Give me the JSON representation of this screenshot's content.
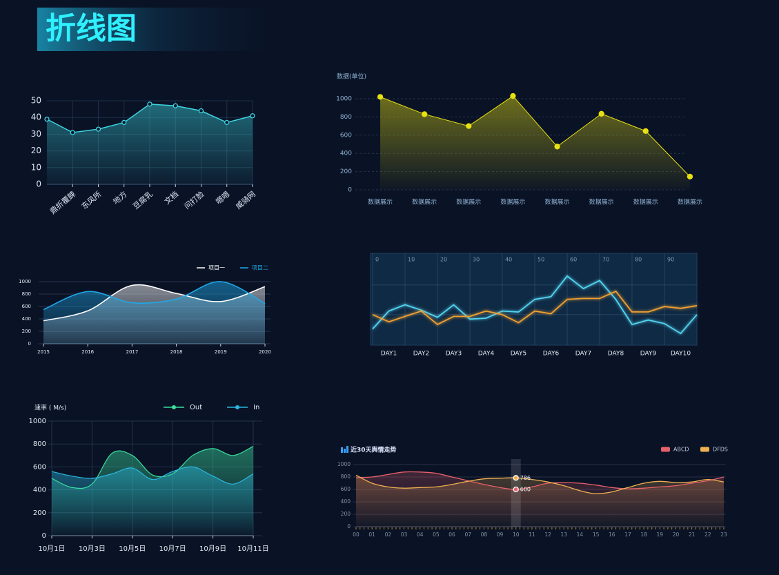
{
  "title": "折线图",
  "chart_data": [
    {
      "type": "area",
      "categories": [
        null,
        "鼎折覆餗",
        "东风所",
        "地方",
        "豆腐乳",
        "文档",
        "问打脸",
        "嗯嗯",
        "威骑网"
      ],
      "values": [
        39,
        31,
        33,
        37,
        48,
        47,
        44,
        37,
        41
      ],
      "color": "#3dd6e0",
      "ylim": [
        0,
        50
      ],
      "yticks": [
        0,
        10,
        20,
        30,
        40,
        50
      ],
      "grid": true,
      "markers": true,
      "smooth": false
    },
    {
      "type": "area",
      "y_label": "数据(单位)",
      "categories": [
        "数据展示",
        "数据展示",
        "数据展示",
        "数据展示",
        "数据展示",
        "数据展示",
        "数据展示",
        "数据展示"
      ],
      "values": [
        1020,
        830,
        700,
        1030,
        475,
        835,
        645,
        145
      ],
      "color": "#e8e010",
      "ylim": [
        0,
        1100
      ],
      "yticks": [
        0,
        200,
        400,
        600,
        800,
        1000
      ],
      "grid": true,
      "markers": true,
      "smooth": false
    },
    {
      "type": "area",
      "categories": [
        "2015",
        "2016",
        "2017",
        "2018",
        "2019",
        "2020"
      ],
      "series": [
        {
          "name": "项目一",
          "color": "#ffffff",
          "values": [
            370,
            530,
            940,
            810,
            680,
            920
          ]
        },
        {
          "name": "项目二",
          "color": "#1fa8e8",
          "values": [
            550,
            840,
            660,
            720,
            1000,
            650
          ]
        }
      ],
      "ylim": [
        0,
        1000
      ],
      "yticks": [
        0,
        200,
        400,
        600,
        800,
        1000
      ],
      "grid": true,
      "smooth": true
    },
    {
      "type": "line",
      "x": [
        0,
        5,
        10,
        15,
        20,
        25,
        30,
        35,
        40,
        45,
        50,
        55,
        60,
        65,
        70,
        75,
        80,
        85,
        90,
        95,
        100
      ],
      "xlim": [
        0,
        100
      ],
      "xticks": [
        0,
        10,
        20,
        30,
        40,
        50,
        60,
        70,
        80,
        90
      ],
      "categories": [
        "DAY1",
        "DAY2",
        "DAY3",
        "DAY4",
        "DAY5",
        "DAY6",
        "DAY7",
        "DAY8",
        "DAY9",
        "DAY10"
      ],
      "series": [
        {
          "color": "#52d4f2",
          "values": [
            18,
            38,
            45,
            39,
            31,
            45,
            29,
            30,
            38,
            37,
            51,
            54,
            77,
            63,
            72,
            51,
            23,
            28,
            24,
            13,
            34
          ]
        },
        {
          "color": "#f0a030",
          "values": [
            34,
            26,
            32,
            38,
            23,
            32,
            32,
            38,
            34,
            25,
            38,
            35,
            51,
            52,
            52,
            60,
            37,
            37,
            43,
            41,
            44
          ]
        }
      ],
      "ylim": [
        0,
        100
      ],
      "grid": true,
      "smooth": false
    },
    {
      "type": "area",
      "y_label": "速率 ( M/s)",
      "categories": [
        "10月1日",
        null,
        "10月3日",
        null,
        "10月5日",
        null,
        "10月7日",
        null,
        "10月9日",
        null,
        "10月11日"
      ],
      "series": [
        {
          "name": "Out",
          "color": "#3be0a0",
          "values": [
            500,
            420,
            450,
            720,
            700,
            530,
            540,
            700,
            760,
            700,
            780
          ]
        },
        {
          "name": "In",
          "color": "#2ab8e0",
          "values": [
            560,
            520,
            500,
            540,
            590,
            490,
            560,
            600,
            520,
            450,
            540
          ]
        }
      ],
      "ylim": [
        0,
        1000
      ],
      "yticks": [
        0,
        200,
        400,
        600,
        800,
        1000
      ],
      "grid": true,
      "smooth": true
    },
    {
      "type": "area",
      "title": "近30天舆情走势",
      "categories": [
        "00",
        "01",
        "02",
        "03",
        "04",
        "05",
        "06",
        "07",
        "08",
        "09",
        "10",
        "11",
        "12",
        "13",
        "14",
        "15",
        "16",
        "17",
        "18",
        "19",
        "20",
        "21",
        "22",
        "23"
      ],
      "series": [
        {
          "name": "ABCD",
          "color": "#e8606a",
          "values": [
            790,
            800,
            840,
            880,
            880,
            860,
            800,
            740,
            680,
            630,
            600,
            640,
            700,
            710,
            700,
            670,
            630,
            610,
            620,
            640,
            660,
            700,
            740,
            800
          ]
        },
        {
          "name": "DFDS",
          "color": "#f0b050",
          "values": [
            830,
            700,
            640,
            620,
            630,
            640,
            680,
            730,
            770,
            780,
            786,
            760,
            720,
            660,
            580,
            530,
            560,
            630,
            700,
            730,
            710,
            720,
            760,
            720
          ]
        }
      ],
      "ylim": [
        0,
        1000
      ],
      "yticks": [
        0,
        200,
        400,
        600,
        800,
        1000
      ],
      "grid": true,
      "smooth": true,
      "tooltip_category": "10"
    }
  ]
}
